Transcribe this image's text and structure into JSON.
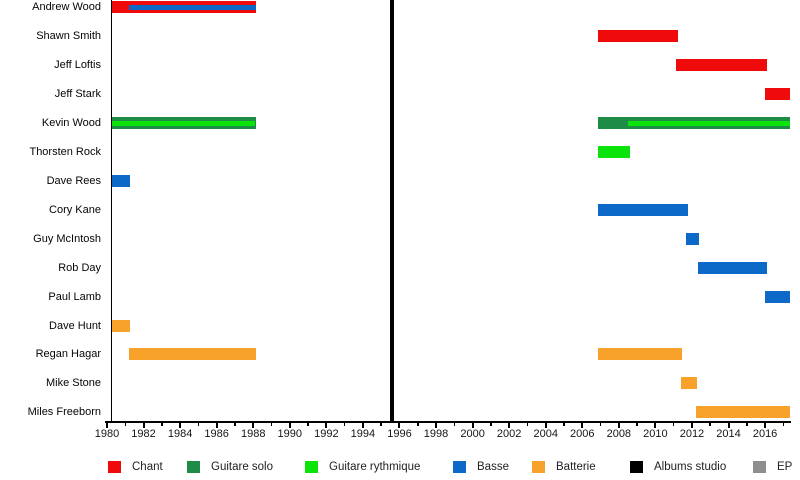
{
  "chart_data": {
    "type": "bar",
    "subtype": "timeline-gantt-band-members",
    "title": "",
    "x_axis": {
      "range": [
        1980,
        2017.4
      ],
      "major_ticks": [
        1980,
        1982,
        1984,
        1986,
        1988,
        1990,
        1992,
        1994,
        1996,
        1998,
        2000,
        2002,
        2004,
        2006,
        2008,
        2010,
        2012,
        2014,
        2016
      ],
      "minor_ticks": [
        1981,
        1983,
        1985,
        1987,
        1989,
        1991,
        1993,
        1995,
        1997,
        1999,
        2001,
        2003,
        2005,
        2007,
        2009,
        2011,
        2013,
        2015,
        2017
      ],
      "grid": false
    },
    "members": [
      {
        "name": "Andrew Wood",
        "bars": [
          {
            "role": "chant",
            "start": 1980.25,
            "end": 1988.15
          },
          {
            "role": "basse",
            "start": 1981.2,
            "end": 1988.15,
            "overlay": true
          }
        ]
      },
      {
        "name": "Shawn Smith",
        "bars": [
          {
            "role": "chant",
            "start": 2006.85,
            "end": 2011.25
          }
        ]
      },
      {
        "name": "Jeff Loftis",
        "bars": [
          {
            "role": "chant",
            "start": 2011.15,
            "end": 2016.1
          }
        ]
      },
      {
        "name": "Jeff Stark",
        "bars": [
          {
            "role": "chant",
            "start": 2016.0,
            "end": 2017.4
          }
        ]
      },
      {
        "name": "Kevin Wood",
        "bars": [
          {
            "role": "guitare_solo",
            "start": 1980.25,
            "end": 1988.15
          },
          {
            "role": "guitare_rythmique",
            "start": 1980.3,
            "end": 1988.1,
            "overlay": true
          },
          {
            "role": "guitare_solo",
            "start": 2006.85,
            "end": 2017.4
          },
          {
            "role": "guitare_rythmique",
            "start": 2008.5,
            "end": 2017.35,
            "overlay": true
          }
        ]
      },
      {
        "name": "Thorsten Rock",
        "bars": [
          {
            "role": "guitare_rythmique",
            "start": 2006.85,
            "end": 2008.6
          }
        ]
      },
      {
        "name": "Dave Rees",
        "bars": [
          {
            "role": "basse",
            "start": 1980.25,
            "end": 1981.25
          }
        ]
      },
      {
        "name": "Cory Kane",
        "bars": [
          {
            "role": "basse",
            "start": 2006.85,
            "end": 2011.8
          }
        ]
      },
      {
        "name": "Guy McIntosh",
        "bars": [
          {
            "role": "basse",
            "start": 2011.7,
            "end": 2012.4
          }
        ]
      },
      {
        "name": "Rob Day",
        "bars": [
          {
            "role": "basse",
            "start": 2012.35,
            "end": 2016.1
          }
        ]
      },
      {
        "name": "Paul Lamb",
        "bars": [
          {
            "role": "basse",
            "start": 2016.0,
            "end": 2017.4
          }
        ]
      },
      {
        "name": "Dave Hunt",
        "bars": [
          {
            "role": "batterie",
            "start": 1980.25,
            "end": 1981.25
          }
        ]
      },
      {
        "name": "Regan Hagar",
        "bars": [
          {
            "role": "batterie",
            "start": 1981.2,
            "end": 1988.15
          },
          {
            "role": "batterie",
            "start": 2006.85,
            "end": 2011.45
          }
        ]
      },
      {
        "name": "Mike Stone",
        "bars": [
          {
            "role": "batterie",
            "start": 2011.4,
            "end": 2012.3
          }
        ]
      },
      {
        "name": "Miles Freeborn",
        "bars": [
          {
            "role": "batterie",
            "start": 2012.2,
            "end": 2017.4
          }
        ]
      }
    ],
    "event_lines": [
      {
        "type": "albums_studio",
        "year": 1995.6
      }
    ],
    "legend": [
      {
        "key": "chant",
        "label": "Chant"
      },
      {
        "key": "guitare_solo",
        "label": "Guitare solo"
      },
      {
        "key": "guitare_rythmique",
        "label": "Guitare rythmique"
      },
      {
        "key": "basse",
        "label": "Basse"
      },
      {
        "key": "batterie",
        "label": "Batterie"
      },
      {
        "key": "albums_studio",
        "label": "Albums studio"
      },
      {
        "key": "ep",
        "label": "EP"
      }
    ],
    "colors": {
      "chant": "#EF0B0B",
      "guitare_solo": "#1E8C46",
      "guitare_rythmique": "#0BE40B",
      "basse": "#0C69C8",
      "batterie": "#F9A22B",
      "albums_studio": "#000000",
      "ep": "#8E8E8E",
      "axis": "#000000",
      "background": "#FFFFFF"
    }
  }
}
